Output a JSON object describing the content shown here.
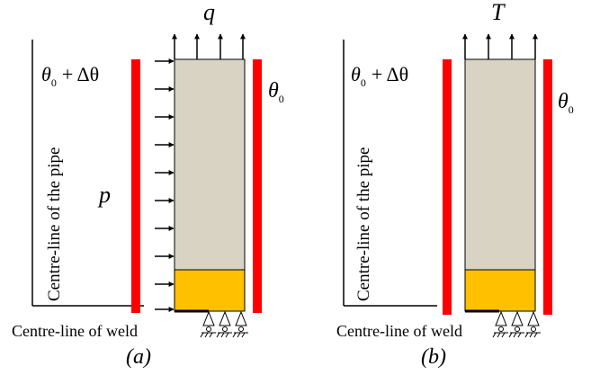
{
  "panel_a": {
    "top_load_label": "q",
    "side_load_label": "p",
    "left_temp_base": "θ",
    "left_temp_sub": "0",
    "left_temp_tail": "+ Δθ",
    "right_temp_base": "θ",
    "right_temp_sub": "0",
    "centreline_pipe": "Centre-line of the pipe",
    "centreline_weld": "Centre-line of weld",
    "caption": "(a)"
  },
  "panel_b": {
    "top_load_label": "T",
    "left_temp_base": "θ",
    "left_temp_sub": "0",
    "left_temp_tail": "+ Δθ",
    "right_temp_base": "θ",
    "right_temp_sub": "0",
    "centreline_pipe": "Centre-line of the pipe",
    "centreline_weld": "Centre-line of weld",
    "caption": "(b)"
  },
  "colors": {
    "pipe_wall": "#d8d3c3",
    "weld": "#ffc000",
    "heat_bar": "#ff0000",
    "line": "#000000"
  },
  "icons": {
    "support": "roller-support-icon",
    "arrow": "arrow-icon"
  }
}
